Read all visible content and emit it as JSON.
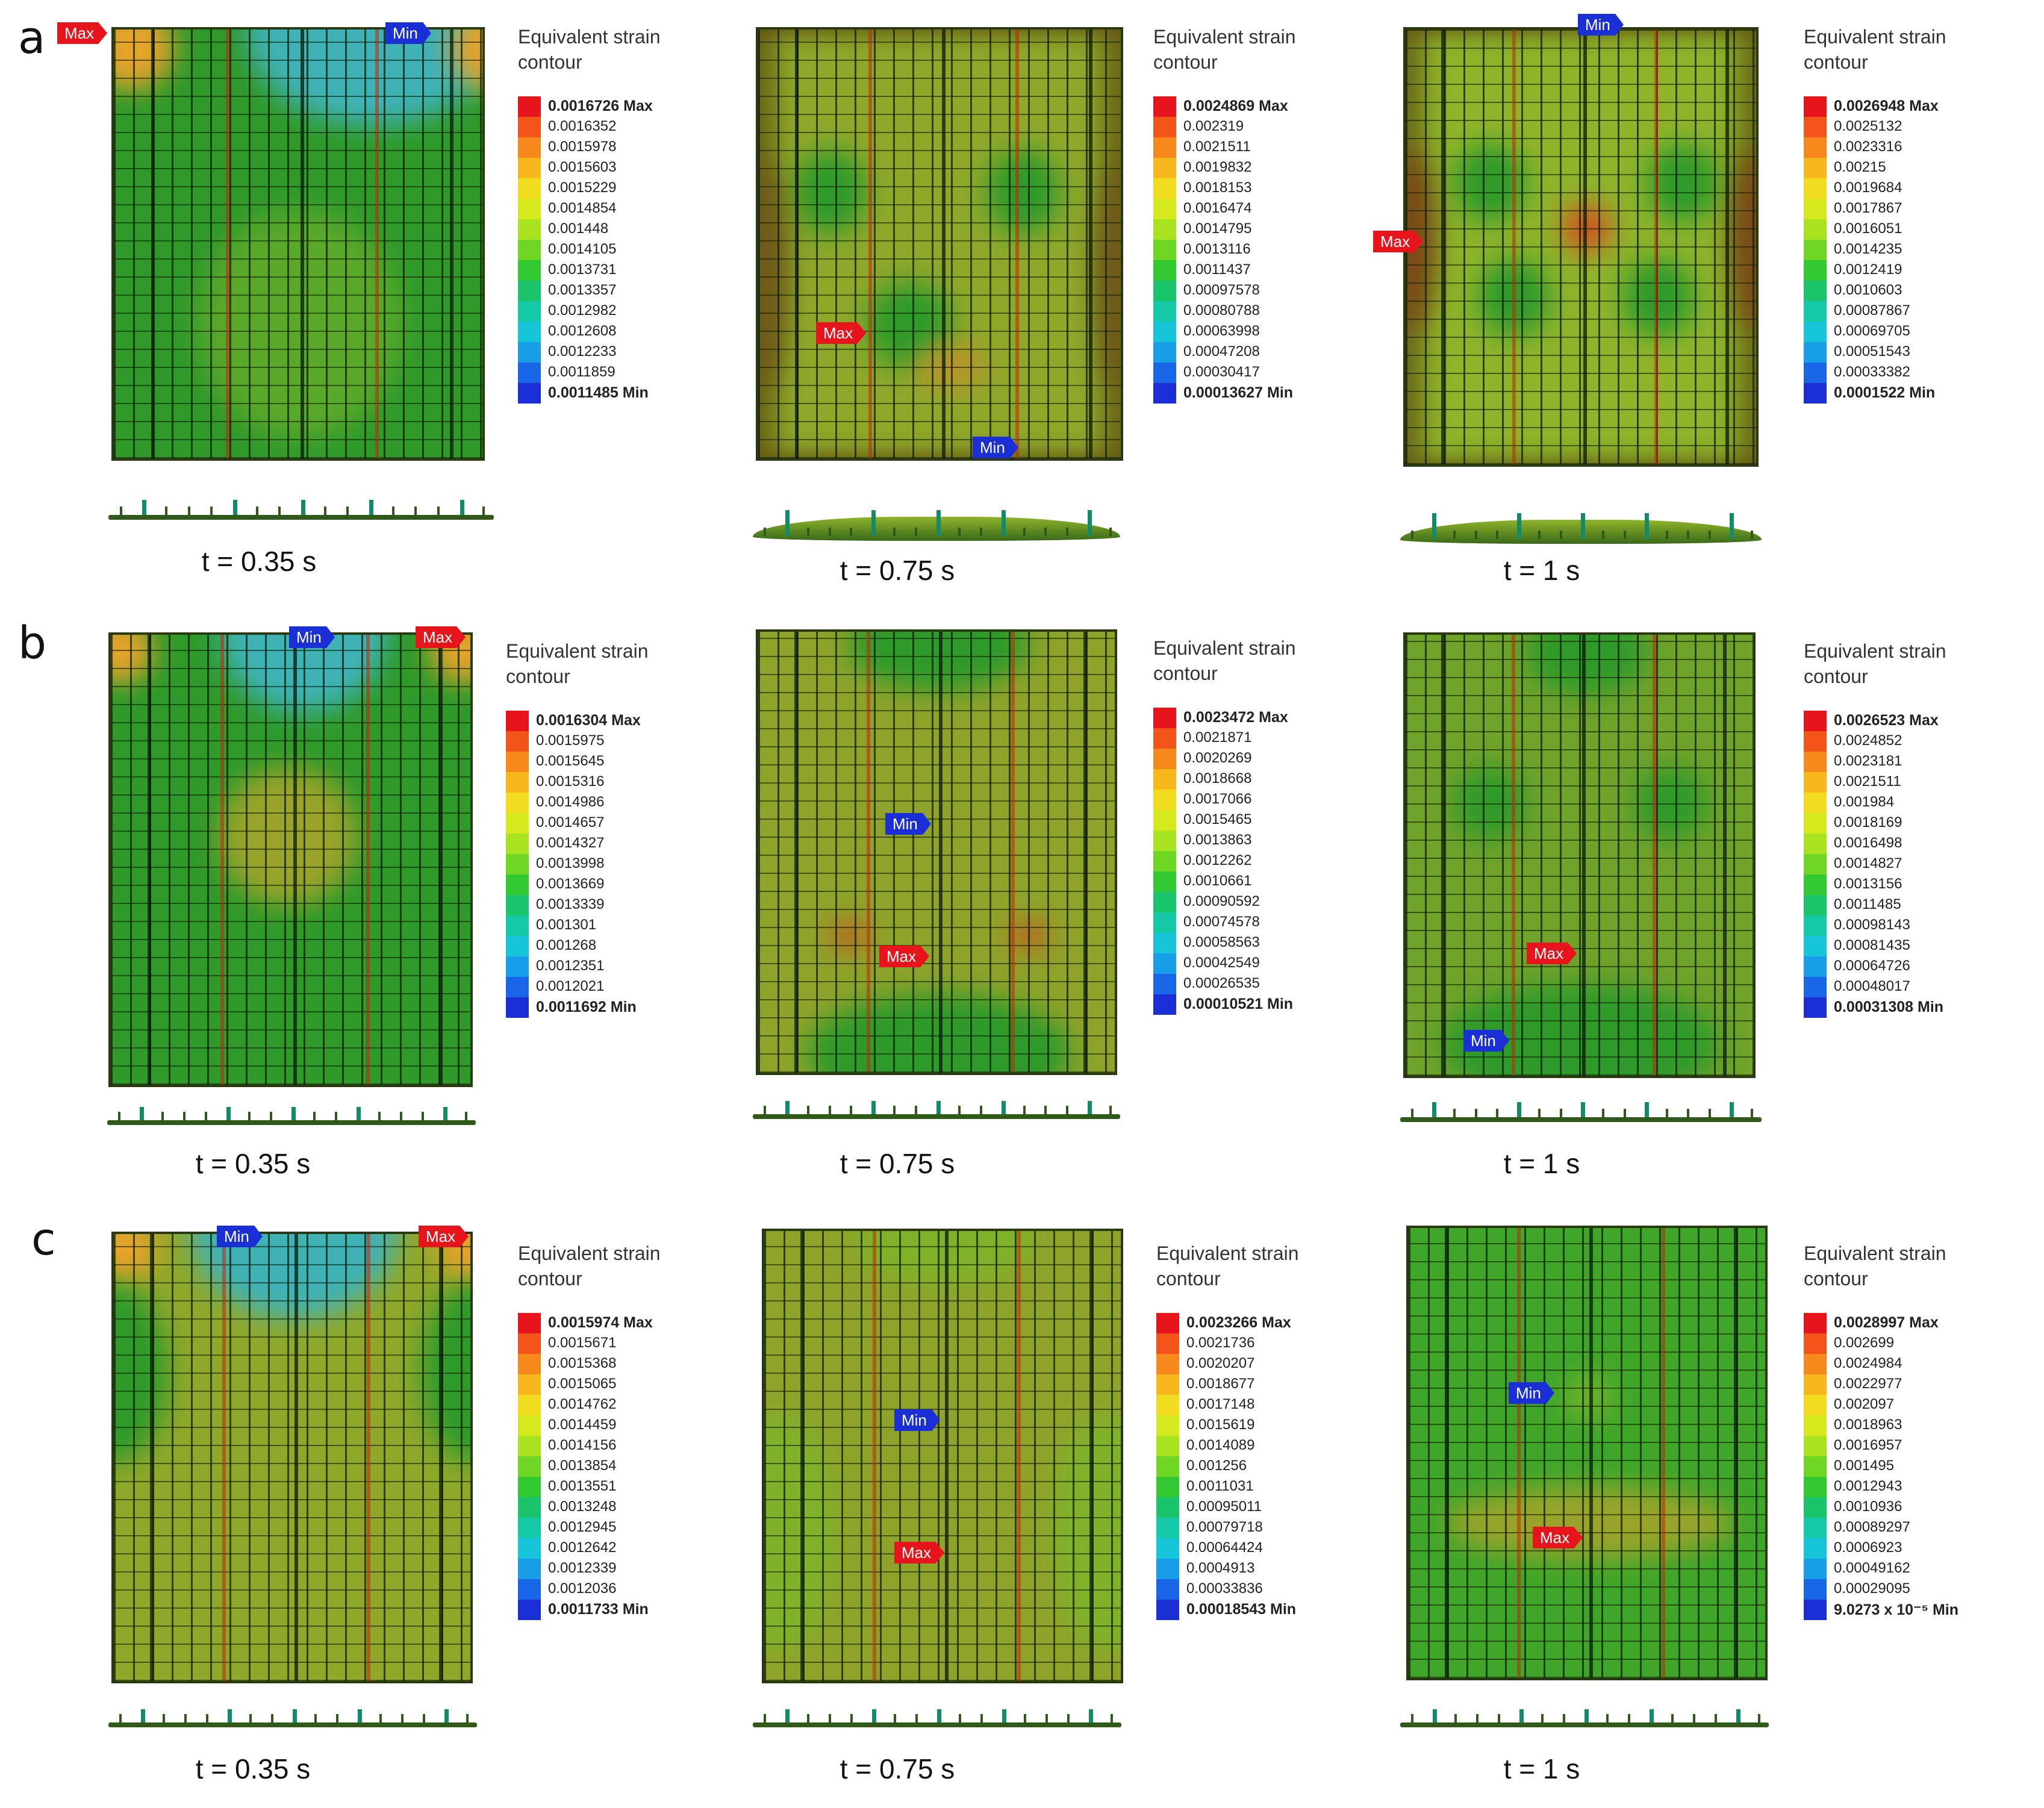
{
  "figure": {
    "legend_title": "Equivalent strain contour",
    "legend_colors": [
      "#e8141b",
      "#f2541a",
      "#f6881c",
      "#f8b81d",
      "#f2dc1f",
      "#d6e81e",
      "#a9e320",
      "#6fd623",
      "#33c932",
      "#19c46b",
      "#15c9a6",
      "#16c6d8",
      "#189ee8",
      "#1a66e8",
      "#1a2fd6"
    ],
    "rows": [
      {
        "label": "a",
        "panels": [
          {
            "time": "t = 0.35 s",
            "max_label": "Max",
            "min_label": "Min",
            "legend": [
              "0.0016726 Max",
              "0.0016352",
              "0.0015978",
              "0.0015603",
              "0.0015229",
              "0.0014854",
              "0.001448",
              "0.0014105",
              "0.0013731",
              "0.0013357",
              "0.0012982",
              "0.0012608",
              "0.0012233",
              "0.0011859",
              "0.0011485 Min"
            ]
          },
          {
            "time": "t = 0.75 s",
            "max_label": "Max",
            "min_label": "Min",
            "legend": [
              "0.0024869 Max",
              "0.002319",
              "0.0021511",
              "0.0019832",
              "0.0018153",
              "0.0016474",
              "0.0014795",
              "0.0013116",
              "0.0011437",
              "0.00097578",
              "0.00080788",
              "0.00063998",
              "0.00047208",
              "0.00030417",
              "0.00013627 Min"
            ]
          },
          {
            "time": "t = 1 s",
            "max_label": "Max",
            "min_label": "Min",
            "legend": [
              "0.0026948 Max",
              "0.0025132",
              "0.0023316",
              "0.00215",
              "0.0019684",
              "0.0017867",
              "0.0016051",
              "0.0014235",
              "0.0012419",
              "0.0010603",
              "0.00087867",
              "0.00069705",
              "0.00051543",
              "0.00033382",
              "0.0001522 Min"
            ]
          }
        ]
      },
      {
        "label": "b",
        "panels": [
          {
            "time": "t = 0.35 s",
            "max_label": "Max",
            "min_label": "Min",
            "legend": [
              "0.0016304 Max",
              "0.0015975",
              "0.0015645",
              "0.0015316",
              "0.0014986",
              "0.0014657",
              "0.0014327",
              "0.0013998",
              "0.0013669",
              "0.0013339",
              "0.001301",
              "0.001268",
              "0.0012351",
              "0.0012021",
              "0.0011692 Min"
            ]
          },
          {
            "time": "t = 0.75 s",
            "max_label": "Max",
            "min_label": "Min",
            "legend": [
              "0.0023472 Max",
              "0.0021871",
              "0.0020269",
              "0.0018668",
              "0.0017066",
              "0.0015465",
              "0.0013863",
              "0.0012262",
              "0.0010661",
              "0.00090592",
              "0.00074578",
              "0.00058563",
              "0.00042549",
              "0.00026535",
              "0.00010521 Min"
            ]
          },
          {
            "time": "t = 1 s",
            "max_label": "Max",
            "min_label": "Min",
            "legend": [
              "0.0026523 Max",
              "0.0024852",
              "0.0023181",
              "0.0021511",
              "0.001984",
              "0.0018169",
              "0.0016498",
              "0.0014827",
              "0.0013156",
              "0.0011485",
              "0.00098143",
              "0.00081435",
              "0.00064726",
              "0.00048017",
              "0.00031308 Min"
            ]
          }
        ]
      },
      {
        "label": "c",
        "panels": [
          {
            "time": "t = 0.35 s",
            "max_label": "Max",
            "min_label": "Min",
            "legend": [
              "0.0015974 Max",
              "0.0015671",
              "0.0015368",
              "0.0015065",
              "0.0014762",
              "0.0014459",
              "0.0014156",
              "0.0013854",
              "0.0013551",
              "0.0013248",
              "0.0012945",
              "0.0012642",
              "0.0012339",
              "0.0012036",
              "0.0011733 Min"
            ]
          },
          {
            "time": "t = 0.75 s",
            "max_label": "Max",
            "min_label": "Min",
            "legend": [
              "0.0023266 Max",
              "0.0021736",
              "0.0020207",
              "0.0018677",
              "0.0017148",
              "0.0015619",
              "0.0014089",
              "0.001256",
              "0.0011031",
              "0.00095011",
              "0.00079718",
              "0.00064424",
              "0.0004913",
              "0.00033836",
              "0.00018543 Min"
            ]
          },
          {
            "time": "t = 1 s",
            "max_label": "Max",
            "min_label": "Min",
            "legend": [
              "0.0028997 Max",
              "0.002699",
              "0.0024984",
              "0.0022977",
              "0.002097",
              "0.0018963",
              "0.0016957",
              "0.001495",
              "0.0012943",
              "0.0010936",
              "0.00089297",
              "0.0006923",
              "0.00049162",
              "0.00029095",
              "9.0273 x 10⁻⁵ Min"
            ]
          }
        ]
      }
    ]
  }
}
